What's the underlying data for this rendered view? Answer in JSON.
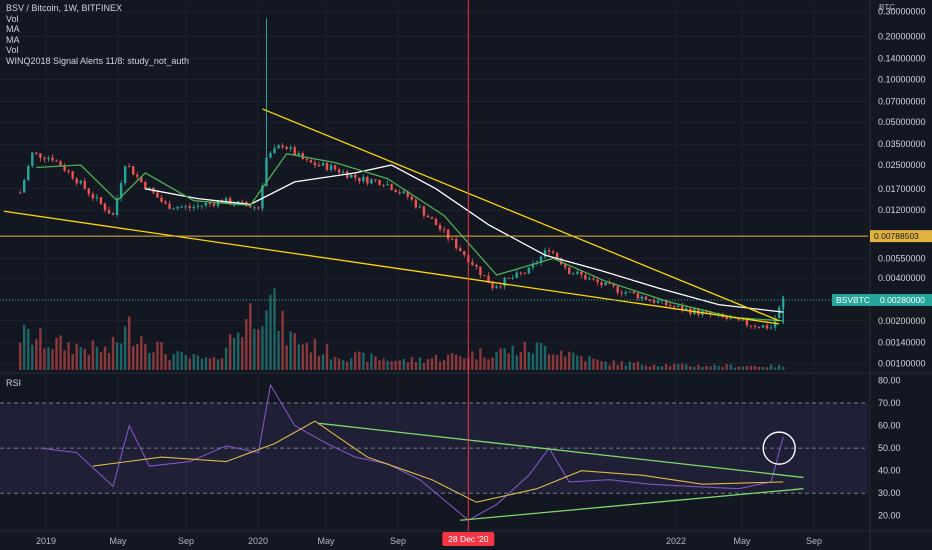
{
  "legend": {
    "title": "BSV / Bitcoin, 1W, BITFINEX",
    "lines": [
      "Vol",
      "MA",
      "MA",
      "Vol",
      "WINQ2018 Signal Alerts 11/8: study_not_auth"
    ]
  },
  "rsi_title": "RSI",
  "unit": "BTC",
  "colors": {
    "background": "#131722",
    "up": "#26a69a",
    "down": "#ef5350",
    "trendline_yellow": "#ffd600",
    "rsi_trend_green": "#7fd96a",
    "rsi_line": "#7e57c2",
    "rsi_ma": "#e0b84a",
    "ma_fast": "#4caf50",
    "ma_slow": "#ffffff",
    "horizontal_level": "#e3b341",
    "cursor_line": "#f23645"
  },
  "chart_data": [
    {
      "type": "candlestick",
      "title": "BSV / Bitcoin, 1W, BITFINEX",
      "y_scale": "log",
      "ylim": [
        0.0009,
        0.34
      ],
      "y_ticks": [
        "0.30000000",
        "0.20000000",
        "0.14000000",
        "0.10000000",
        "0.07000000",
        "0.05000000",
        "0.03500000",
        "0.02500000",
        "0.01700000",
        "0.01200000",
        "0.00550000",
        "0.00400000",
        "0.00280000",
        "0.00200000",
        "0.00140000",
        "0.00100000"
      ],
      "x_ticks": [
        "2019",
        "May",
        "Sep",
        "2020",
        "May",
        "Sep",
        "2022",
        "May",
        "Sep"
      ],
      "cursor_date_label": "28 Dec '20",
      "horizontal_level": {
        "value": 0.00788503,
        "label": "0.00788503"
      },
      "last_price_badge": {
        "symbol": "BSVBTC",
        "value": "0.00280000"
      },
      "price_path": [
        [
          "2018-11-12",
          0.016
        ],
        [
          "2018-12-03",
          0.03
        ],
        [
          "2019-01-07",
          0.028
        ],
        [
          "2019-02-11",
          0.021
        ],
        [
          "2019-03-18",
          0.015
        ],
        [
          "2019-04-22",
          0.011
        ],
        [
          "2019-05-13",
          0.026
        ],
        [
          "2019-06-10",
          0.019
        ],
        [
          "2019-07-22",
          0.013
        ],
        [
          "2019-09-02",
          0.0125
        ],
        [
          "2019-10-28",
          0.014
        ],
        [
          "2019-12-30",
          0.0125
        ],
        [
          "2020-01-13",
          0.028
        ],
        [
          "2020-02-10",
          0.035
        ],
        [
          "2020-03-23",
          0.026
        ],
        [
          "2020-05-04",
          0.024
        ],
        [
          "2020-06-22",
          0.02
        ],
        [
          "2020-08-03",
          0.019
        ],
        [
          "2020-09-14",
          0.015
        ],
        [
          "2020-11-02",
          0.0095
        ],
        [
          "2020-12-28",
          0.0055
        ],
        [
          "2021-02-08",
          0.0035
        ],
        [
          "2021-04-12",
          0.0045
        ],
        [
          "2021-05-17",
          0.0065
        ],
        [
          "2021-06-21",
          0.0045
        ],
        [
          "2021-08-16",
          0.0036
        ],
        [
          "2021-10-18",
          0.003
        ],
        [
          "2021-12-20",
          0.0025
        ],
        [
          "2022-02-21",
          0.0022
        ],
        [
          "2022-04-25",
          0.0019
        ],
        [
          "2022-06-06",
          0.0018
        ],
        [
          "2022-06-27",
          0.0028
        ]
      ],
      "ma_fast": [
        [
          "2018-12-10",
          0.024
        ],
        [
          "2019-02-25",
          0.025
        ],
        [
          "2019-04-29",
          0.014
        ],
        [
          "2019-06-17",
          0.022
        ],
        [
          "2019-09-09",
          0.014
        ],
        [
          "2019-12-16",
          0.013
        ],
        [
          "2020-02-17",
          0.03
        ],
        [
          "2020-05-11",
          0.026
        ],
        [
          "2020-08-10",
          0.02
        ],
        [
          "2020-11-16",
          0.011
        ],
        [
          "2021-02-15",
          0.0042
        ],
        [
          "2021-05-24",
          0.0055
        ],
        [
          "2021-08-23",
          0.0038
        ],
        [
          "2021-12-13",
          0.0027
        ],
        [
          "2022-04-04",
          0.0021
        ],
        [
          "2022-06-27",
          0.002
        ]
      ],
      "ma_slow": [
        [
          "2019-06-17",
          0.017
        ],
        [
          "2019-09-16",
          0.0145
        ],
        [
          "2019-12-16",
          0.0132
        ],
        [
          "2020-03-02",
          0.019
        ],
        [
          "2020-06-15",
          0.022
        ],
        [
          "2020-08-17",
          0.025
        ],
        [
          "2020-11-02",
          0.017
        ],
        [
          "2021-02-01",
          0.0095
        ],
        [
          "2021-05-10",
          0.0058
        ],
        [
          "2021-08-16",
          0.0045
        ],
        [
          "2021-11-22",
          0.0034
        ],
        [
          "2022-03-07",
          0.0026
        ],
        [
          "2022-06-27",
          0.0023
        ]
      ],
      "trendlines": [
        {
          "from": [
            "2018-10-15",
            0.0118
          ],
          "to": [
            "2022-06-20",
            0.0019
          ]
        },
        {
          "from": [
            "2020-01-06",
            0.062
          ],
          "to": [
            "2022-06-20",
            0.002
          ]
        }
      ],
      "volume_path": [
        [
          "2018-11-19",
          0.45
        ],
        [
          "2019-01-07",
          0.35
        ],
        [
          "2019-04-15",
          0.25
        ],
        [
          "2019-05-20",
          0.55
        ],
        [
          "2019-07-29",
          0.2
        ],
        [
          "2019-10-14",
          0.12
        ],
        [
          "2020-01-13",
          1.0
        ],
        [
          "2020-02-17",
          0.45
        ],
        [
          "2020-05-11",
          0.2
        ],
        [
          "2020-09-07",
          0.12
        ],
        [
          "2020-12-28",
          0.2
        ],
        [
          "2021-03-01",
          0.25
        ],
        [
          "2021-05-17",
          0.3
        ],
        [
          "2021-08-16",
          0.1
        ],
        [
          "2022-01-10",
          0.06
        ],
        [
          "2022-06-27",
          0.05
        ]
      ]
    },
    {
      "type": "line",
      "title": "RSI",
      "ylim": [
        15,
        82
      ],
      "y_ticks": [
        80,
        70,
        60,
        50,
        40,
        30,
        20
      ],
      "levels": [
        70,
        50,
        30
      ],
      "rsi": [
        [
          "2018-12-17",
          50
        ],
        [
          "2019-02-18",
          48
        ],
        [
          "2019-04-22",
          33
        ],
        [
          "2019-05-20",
          60
        ],
        [
          "2019-06-24",
          42
        ],
        [
          "2019-09-02",
          44
        ],
        [
          "2019-11-04",
          51
        ],
        [
          "2019-12-30",
          48
        ],
        [
          "2020-01-20",
          78
        ],
        [
          "2020-03-02",
          60
        ],
        [
          "2020-04-27",
          52
        ],
        [
          "2020-06-15",
          46
        ],
        [
          "2020-08-10",
          43
        ],
        [
          "2020-10-05",
          36
        ],
        [
          "2020-12-28",
          18
        ],
        [
          "2021-02-15",
          25
        ],
        [
          "2021-04-12",
          38
        ],
        [
          "2021-05-17",
          50
        ],
        [
          "2021-06-21",
          35
        ],
        [
          "2021-08-30",
          36
        ],
        [
          "2021-11-08",
          34
        ],
        [
          "2022-01-17",
          33
        ],
        [
          "2022-04-11",
          32
        ],
        [
          "2022-06-06",
          35
        ],
        [
          "2022-06-27",
          55
        ]
      ],
      "rsi_ma": [
        [
          "2019-03-18",
          42
        ],
        [
          "2019-07-15",
          46
        ],
        [
          "2019-11-04",
          44
        ],
        [
          "2020-01-27",
          52
        ],
        [
          "2020-04-06",
          62
        ],
        [
          "2020-07-06",
          46
        ],
        [
          "2020-10-26",
          36
        ],
        [
          "2021-01-11",
          26
        ],
        [
          "2021-04-26",
          32
        ],
        [
          "2021-07-12",
          40
        ],
        [
          "2021-10-25",
          38
        ],
        [
          "2022-02-07",
          34
        ],
        [
          "2022-06-27",
          35
        ]
      ],
      "trendlines": [
        {
          "from": [
            "2020-04-13",
            61
          ],
          "to": [
            "2022-08-01",
            37
          ]
        },
        {
          "from": [
            "2020-12-14",
            18
          ],
          "to": [
            "2022-08-01",
            32
          ]
        }
      ],
      "highlight_circle": {
        "date": "2022-06-20",
        "value": 50
      }
    }
  ]
}
